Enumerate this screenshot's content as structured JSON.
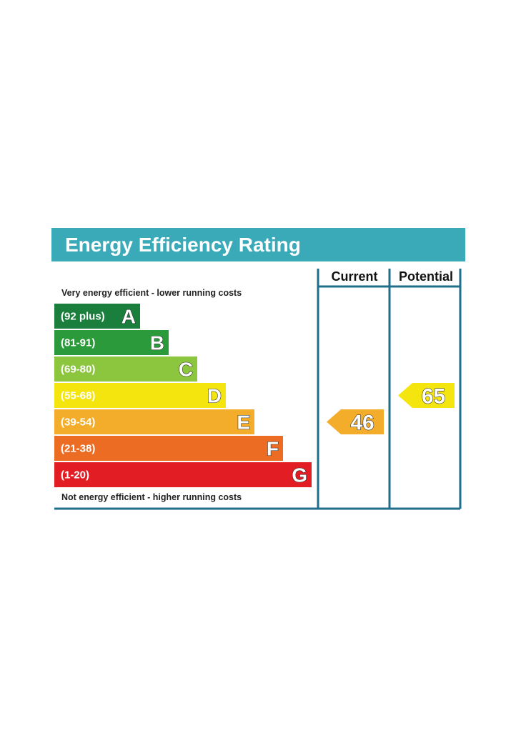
{
  "title": "Energy Efficiency Rating",
  "header_current": "Current",
  "header_potential": "Potential",
  "top_caption": "Very energy efficient - lower running costs",
  "bottom_caption": "Not energy efficient - higher running costs",
  "chart_data": {
    "type": "bar",
    "bands": [
      {
        "letter": "A",
        "range": "(92 plus)",
        "min": 92,
        "max": 100,
        "color": "#1a7f3c"
      },
      {
        "letter": "B",
        "range": "(81-91)",
        "min": 81,
        "max": 91,
        "color": "#2a9a3a"
      },
      {
        "letter": "C",
        "range": "(69-80)",
        "min": 69,
        "max": 80,
        "color": "#8cc63f"
      },
      {
        "letter": "D",
        "range": "(55-68)",
        "min": 55,
        "max": 68,
        "color": "#f5e50f"
      },
      {
        "letter": "E",
        "range": "(39-54)",
        "min": 39,
        "max": 54,
        "color": "#f4ad2a"
      },
      {
        "letter": "F",
        "range": "(21-38)",
        "min": 21,
        "max": 38,
        "color": "#ec6c24"
      },
      {
        "letter": "G",
        "range": "(1-20)",
        "min": 1,
        "max": 20,
        "color": "#e31d24"
      }
    ],
    "current": {
      "label": "46",
      "value": 46,
      "band": "E",
      "color": "#f4ad2a"
    },
    "potential": {
      "label": "65",
      "value": 65,
      "band": "D",
      "color": "#f5e50f"
    },
    "colors": {
      "title_bar": "#3aa9b8",
      "frame": "#1f6e8c"
    }
  }
}
